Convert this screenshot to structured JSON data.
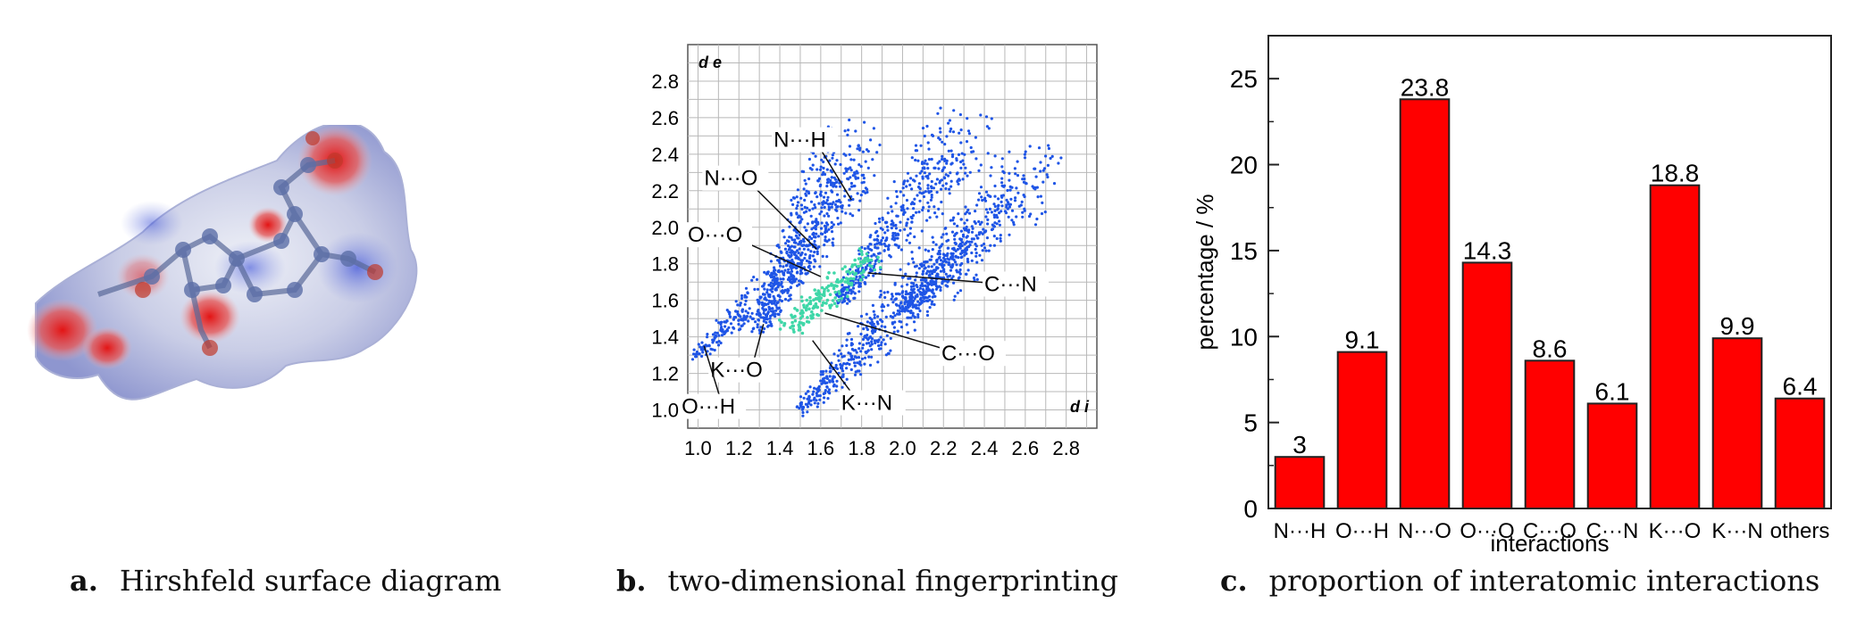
{
  "captions": {
    "a_letter": "a.",
    "a_text": "Hirshfeld surface diagram",
    "b_letter": "b.",
    "b_text": "two-dimensional fingerprinting",
    "c_letter": "c.",
    "c_text": "proportion of interatomic interactions"
  },
  "fingerprint": {
    "corner_de": "d e",
    "corner_di": "d i",
    "x_ticks": [
      "1.0",
      "1.2",
      "1.4",
      "1.6",
      "1.8",
      "2.0",
      "2.2",
      "2.4",
      "2.6",
      "2.8"
    ],
    "y_ticks": [
      "1.0",
      "1.2",
      "1.4",
      "1.6",
      "1.8",
      "2.0",
      "2.2",
      "2.4",
      "2.6",
      "2.8"
    ],
    "labels": [
      "N···H",
      "N···O",
      "O···O",
      "C···N",
      "C···O",
      "K···O",
      "K···N",
      "O···H"
    ],
    "colors": {
      "point": "#1f55e6",
      "core": "#3fd7a8"
    }
  },
  "chart_data": [
    {
      "type": "scatter",
      "title": "",
      "xlabel": "d i",
      "ylabel": "d e",
      "xlim": [
        0.95,
        2.95
      ],
      "ylim": [
        0.9,
        3.0
      ],
      "annotations": [
        "N···H",
        "N···O",
        "O···O",
        "C···N",
        "C···O",
        "K···O",
        "K···N",
        "O···H"
      ]
    },
    {
      "type": "bar",
      "categories": [
        "N···H",
        "O···H",
        "N···O",
        "O···O",
        "C···O",
        "C···N",
        "K···O",
        "K···N",
        "others"
      ],
      "values": [
        3,
        9.1,
        23.8,
        14.3,
        8.6,
        6.1,
        18.8,
        9.9,
        6.4
      ],
      "data_labels": [
        "3",
        "9.1",
        "23.8",
        "14.3",
        "8.6",
        "6.1",
        "18.8",
        "9.9",
        "6.4"
      ],
      "xlabel": "interactions",
      "ylabel": "percentage / %",
      "ylim": [
        0,
        27.5
      ],
      "y_ticks": [
        "0",
        "5",
        "10",
        "15",
        "20",
        "25"
      ],
      "bar_color": "#ff0000"
    }
  ]
}
